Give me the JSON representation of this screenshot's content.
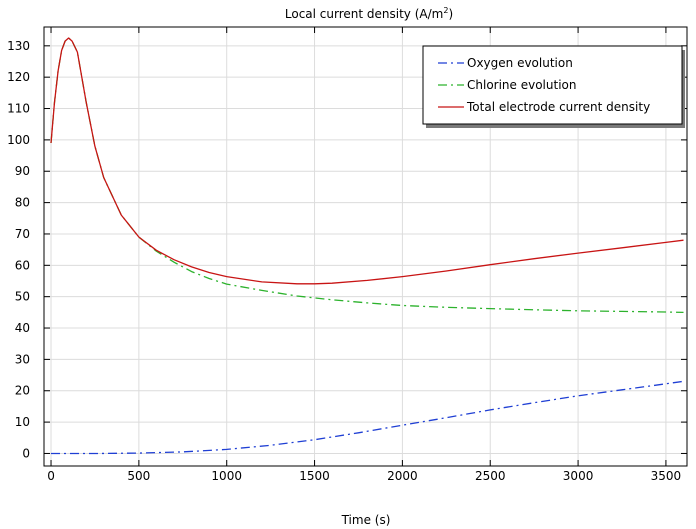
{
  "chart_data": {
    "type": "line",
    "title": "Local current density (A/m",
    "title_sup": "2",
    "title_end": ")",
    "xlabel": "Time (s)",
    "ylabel": "",
    "xlim": [
      -40,
      3620
    ],
    "ylim": [
      -4,
      136
    ],
    "xticks": [
      0,
      500,
      1000,
      1500,
      2000,
      2500,
      3000,
      3500
    ],
    "yticks": [
      0,
      10,
      20,
      30,
      40,
      50,
      60,
      70,
      80,
      90,
      100,
      110,
      120,
      130
    ],
    "grid": true,
    "legend_position": "top-right",
    "series": [
      {
        "name": "Oxygen evolution",
        "color": "#1f3fd4",
        "dash": "dash-dot",
        "x": [
          0,
          250,
          500,
          750,
          1000,
          1250,
          1500,
          1750,
          2000,
          2250,
          2500,
          2750,
          3000,
          3250,
          3500,
          3600
        ],
        "y": [
          0,
          0,
          0.1,
          0.5,
          1.3,
          2.6,
          4.4,
          6.6,
          9.0,
          11.4,
          13.9,
          16.2,
          18.4,
          20.3,
          22.2,
          23.0
        ]
      },
      {
        "name": "Chlorine evolution",
        "color": "#2cb22c",
        "dash": "dash-dot",
        "x": [
          0,
          20,
          40,
          60,
          80,
          100,
          120,
          150,
          200,
          250,
          300,
          400,
          500,
          600,
          700,
          800,
          900,
          1000,
          1200,
          1400,
          1600,
          1800,
          2000,
          2250,
          2500,
          2750,
          3000,
          3250,
          3500,
          3600
        ],
        "y": [
          99,
          112,
          122,
          128.5,
          131.5,
          132.5,
          131.5,
          128,
          112,
          98,
          88,
          76,
          69,
          64.5,
          61,
          58,
          55.8,
          54,
          52,
          50.2,
          49,
          48,
          47.2,
          46.6,
          46.2,
          45.8,
          45.5,
          45.3,
          45.1,
          45.0
        ]
      },
      {
        "name": "Total electrode current density",
        "color": "#c81414",
        "dash": "solid",
        "x": [
          0,
          20,
          40,
          60,
          80,
          100,
          120,
          150,
          200,
          250,
          300,
          400,
          500,
          600,
          700,
          800,
          900,
          1000,
          1200,
          1400,
          1500,
          1600,
          1800,
          2000,
          2250,
          2500,
          2750,
          3000,
          3250,
          3500,
          3600
        ],
        "y": [
          99,
          112,
          122,
          128.5,
          131.5,
          132.5,
          131.5,
          128,
          112,
          98,
          88,
          76,
          69,
          64.8,
          61.8,
          59.5,
          57.7,
          56.4,
          54.7,
          54.1,
          54.1,
          54.3,
          55.2,
          56.4,
          58.2,
          60.2,
          62.1,
          63.9,
          65.6,
          67.3,
          68.0
        ]
      }
    ]
  }
}
